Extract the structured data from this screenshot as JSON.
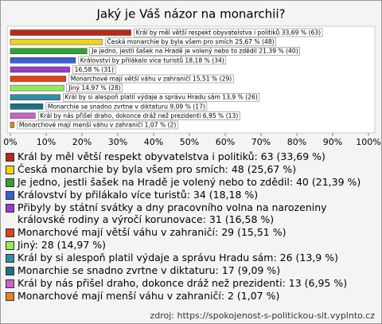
{
  "chart_data": {
    "type": "hbar",
    "title": "Jaký je Váš názor na monarchii?",
    "categories": [
      "Král by měl větší respekt obyvatelstva i politiků",
      "Česká monarchie by byla všem pro smích",
      "Je jedno, jestli šašek na Hradě je volený nebo to zdědil",
      "Království by přilákalo více turistů",
      "Přibyly by státní svátky a dny pracovního volna na narozeniny královské rodiny a výročí korunovace",
      "Monarchové mají větší váhu v zahraničí",
      "Jiný",
      "Král by si alespoň platil výdaje a správu Hradu sám",
      "Monarchie se snadno zvrtne v diktaturu",
      "Král by nás přišel draho, dokonce dráž než prezidenti",
      "Monarchové mají menší váhu v zahraničí"
    ],
    "values": [
      33.69,
      25.67,
      21.39,
      18.18,
      16.58,
      15.51,
      14.97,
      13.9,
      9.09,
      6.95,
      1.07
    ],
    "counts": [
      63,
      48,
      40,
      34,
      31,
      29,
      28,
      26,
      17,
      13,
      2
    ],
    "bar_labels": [
      "Král by měl větší respekt obyvatelstva i politiků 33,69 % (63)",
      "Česká monarchie by byla všem pro smích 25,67 % (48)",
      "Je jedno, jestli šašek na Hradě je volený nebo to zdědil 21,39 % (40)",
      "Království by přilákalo více turistů 18,18 % (34)",
      "16,58 % (31)",
      "Monarchové mají větší váhu v zahraničí 15,51 % (29)",
      "Jiný 14,97 % (28)",
      "Král by si alespoň platil výdaje a správu Hradu sám 13,9 % (26)",
      "Monarchie se snadno zvrtne v diktaturu 9,09 % (17)",
      "Král by nás přišel draho, dokonce dráž než prezidenti 6,95 % (13)",
      "Monarchové mají menší váhu v zahraničí 1,07 % (2)"
    ],
    "legend_labels": [
      "Král by měl větší respekt obyvatelstva i politiků: 63 (33,69 %)",
      "Česká monarchie by byla všem pro smích: 48 (25,67 %)",
      "Je jedno, jestli šašek na Hradě je volený nebo to zdědil: 40 (21,39 %)",
      "Království by přilákalo více turistů: 34 (18,18 %)",
      "Přibyly by státní svátky a dny pracovního volna na narozeniny královské rodiny a výročí korunovace: 31 (16,58 %)",
      "Monarchové mají větší váhu v zahraničí: 29 (15,51 %)",
      "Jiný: 28 (14,97 %)",
      "Král by si alespoň platil výdaje a správu Hradu sám: 26 (13,9 %)",
      "Monarchie se snadno zvrtne v diktaturu: 17 (9,09 %)",
      "Král by nás přišel draho, dokonce dráž než prezidenti: 13 (6,95 %)",
      "Monarchové mají menší váhu v zahraničí: 2 (1,07 %)"
    ],
    "colors": [
      "#b52a1c",
      "#f2d21a",
      "#2fa52f",
      "#3d5fd0",
      "#9a3ad2",
      "#e0401c",
      "#98e860",
      "#2f8fa8",
      "#1f6f86",
      "#c764c7",
      "#e8821e"
    ],
    "xlim": [
      0,
      100
    ],
    "xticks": [
      {
        "value": 0,
        "label": "0%"
      },
      {
        "value": 10,
        "label": "10%"
      },
      {
        "value": 20,
        "label": "20%"
      },
      {
        "value": 30,
        "label": "30%"
      },
      {
        "value": 40,
        "label": "40%"
      },
      {
        "value": 50,
        "label": "50%"
      },
      {
        "value": 60,
        "label": "60%"
      },
      {
        "value": 70,
        "label": "70%"
      },
      {
        "value": 80,
        "label": "80%"
      },
      {
        "value": 90,
        "label": "90%"
      },
      {
        "value": 100,
        "label": "100%"
      }
    ],
    "grid": false,
    "source": "zdroj: https://spokojenost-s-politickou-sit.vyplnto.cz"
  }
}
